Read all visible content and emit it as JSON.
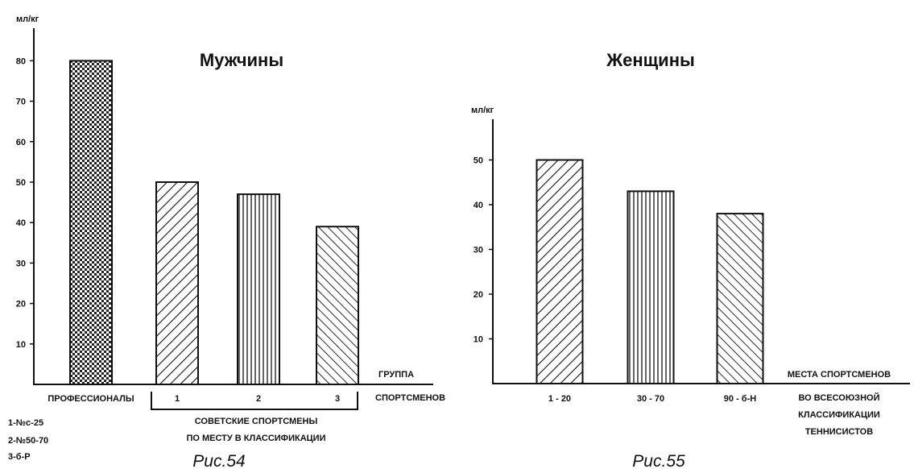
{
  "chart_data": [
    {
      "type": "bar",
      "title": "Мужчины",
      "ylabel": "мл/кг",
      "ylim": [
        0,
        90
      ],
      "yticks": [
        10,
        20,
        30,
        40,
        50,
        60,
        70,
        80
      ],
      "categories": [
        "ПРОФЕССИОНАЛЫ",
        "1",
        "2",
        "3"
      ],
      "values": [
        80,
        50,
        47,
        39
      ],
      "patterns": [
        "crosshatch",
        "diagonal-right",
        "vertical",
        "diagonal-left"
      ],
      "xlabel": [
        "ГРУППА",
        "СПОРТСМЕНОВ"
      ],
      "group_label": [
        "СОВЕТСКИЕ СПОРТСМЕНЫ",
        "ПО МЕСТУ В КЛАССИФИКАЦИИ"
      ],
      "legend_notes": [
        "1-№с-25",
        "2-№50-70",
        "3-б-Р"
      ],
      "caption": "Рис.54"
    },
    {
      "type": "bar",
      "title": "Женщины",
      "ylabel": "мл/кг",
      "ylim": [
        0,
        60
      ],
      "yticks": [
        10,
        20,
        30,
        40,
        50
      ],
      "categories": [
        "1 - 20",
        "30 - 70",
        "90 - б-Н"
      ],
      "values": [
        50,
        43,
        38
      ],
      "patterns": [
        "diagonal-right",
        "vertical",
        "diagonal-left"
      ],
      "xlabel": [
        "МЕСТА СПОРТСМЕНОВ",
        "ВО ВСЕСОЮЗНОЙ",
        "КЛАССИФИКАЦИИ",
        "ТЕННИСИСТОВ"
      ],
      "caption": "Рис.55"
    }
  ]
}
